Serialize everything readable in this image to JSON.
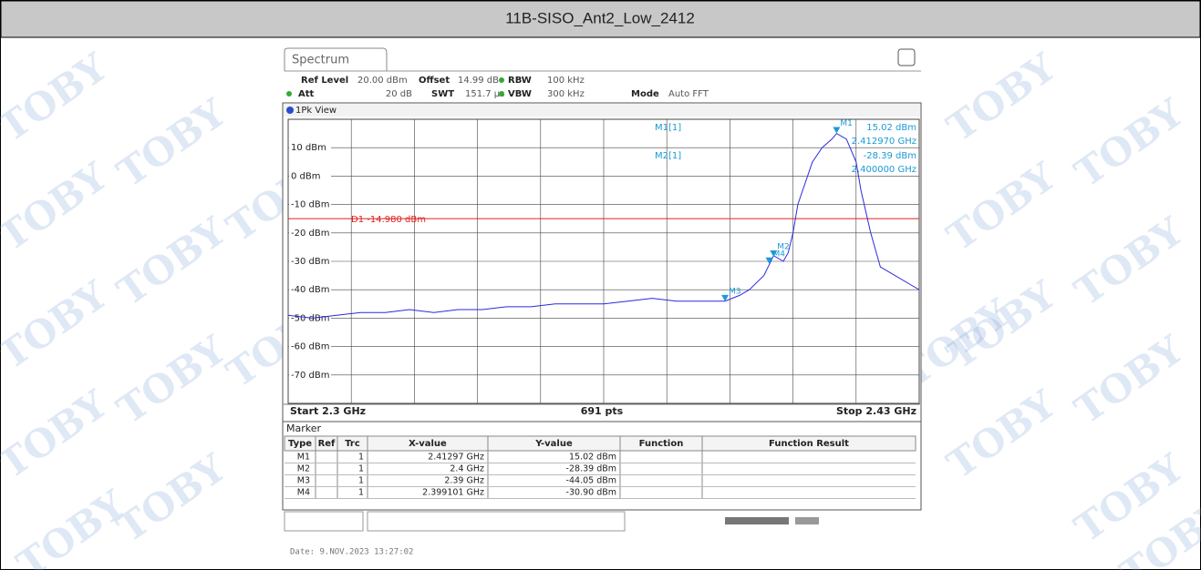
{
  "header": {
    "title": "11B-SISO_Ant2_Low_2412"
  },
  "instrument": {
    "tab": "Spectrum",
    "watermark": "TOBY",
    "settings": [
      {
        "label": "Ref Level",
        "value": "20.00 dBm"
      },
      {
        "label": "Offset",
        "value": "14.99 dB"
      },
      {
        "label": "RBW",
        "value": "100 kHz"
      },
      {
        "label": "Att",
        "value": "20 dB"
      },
      {
        "label": "SWT",
        "value": "151.7 µs"
      },
      {
        "label": "VBW",
        "value": "300 kHz"
      },
      {
        "label": "Mode",
        "value": "Auto FFT"
      }
    ],
    "view": "1Pk View",
    "readout": [
      {
        "label": "M1[1]",
        "y": "15.02 dBm",
        "x": "2.412970 GHz"
      },
      {
        "label": "M2[1]",
        "y": "-28.39 dBm",
        "x": "2.400000 GHz"
      }
    ],
    "start": "Start 2.3 GHz",
    "points": "691 pts",
    "stop": "Stop 2.43 GHz",
    "date": "Date: 9.NOV.2023 13:27:02"
  },
  "chart_data": {
    "type": "line",
    "x": [
      2.3,
      2.305,
      2.31,
      2.315,
      2.32,
      2.325,
      2.33,
      2.335,
      2.34,
      2.345,
      2.35,
      2.355,
      2.36,
      2.365,
      2.37,
      2.375,
      2.38,
      2.385,
      2.39,
      2.393,
      2.395,
      2.398,
      2.4,
      2.402,
      2.403,
      2.404,
      2.405,
      2.406,
      2.408,
      2.41,
      2.412,
      2.413,
      2.415,
      2.417,
      2.418,
      2.42,
      2.422,
      2.425,
      2.428,
      2.43
    ],
    "series": [
      {
        "color": "#2a2ae0",
        "values": [
          -49,
          -50,
          -49,
          -48,
          -48,
          -47,
          -48,
          -47,
          -47,
          -46,
          -46,
          -45,
          -45,
          -45,
          -44,
          -43,
          -44,
          -44,
          -44,
          -42,
          -40,
          -35,
          -28,
          -30,
          -27,
          -20,
          -10,
          -5,
          5,
          10,
          13,
          15,
          13,
          5,
          -5,
          -20,
          -32,
          -35,
          -38,
          -40
        ]
      }
    ],
    "xlim": [
      2.3,
      2.43
    ],
    "ylim": [
      -80,
      20
    ],
    "yticks": [
      {
        "value": 10,
        "label": "10 dBm"
      },
      {
        "value": 0,
        "label": "0 dBm"
      },
      {
        "value": -10,
        "label": "-10 dBm"
      },
      {
        "value": -20,
        "label": "-20 dBm"
      },
      {
        "value": -30,
        "label": "-30 dBm"
      },
      {
        "value": -40,
        "label": "-40 dBm"
      },
      {
        "value": -50,
        "label": "-50 dBm"
      },
      {
        "value": -60,
        "label": "-60 dBm"
      },
      {
        "value": -70,
        "label": "-70 dBm"
      }
    ],
    "threshold": {
      "value": -14.98,
      "label": "D1 -14.980 dBm",
      "color": "#e02020"
    },
    "markers": [
      {
        "label": "M1",
        "x": 2.41297,
        "y": 15.02
      },
      {
        "label": "M2",
        "x": 2.4,
        "y": -28.39
      },
      {
        "label": "M3",
        "x": 2.39,
        "y": -44.05
      },
      {
        "label": "M4",
        "x": 2.399101,
        "y": -30.9
      }
    ],
    "grid": true
  },
  "table": {
    "title": "Marker",
    "columns": [
      "Type",
      "Ref",
      "Trc",
      "X-value",
      "Y-value",
      "Function",
      "Function Result"
    ],
    "rows": [
      [
        "M1",
        "1",
        "2.41297 GHz",
        "15.02 dBm"
      ],
      [
        "M2",
        "1",
        "2.4 GHz",
        "-28.39 dBm"
      ],
      [
        "M3",
        "1",
        "2.39 GHz",
        "-44.05 dBm"
      ],
      [
        "M4",
        "1",
        "2.399101 GHz",
        "-30.90 dBm"
      ]
    ]
  }
}
